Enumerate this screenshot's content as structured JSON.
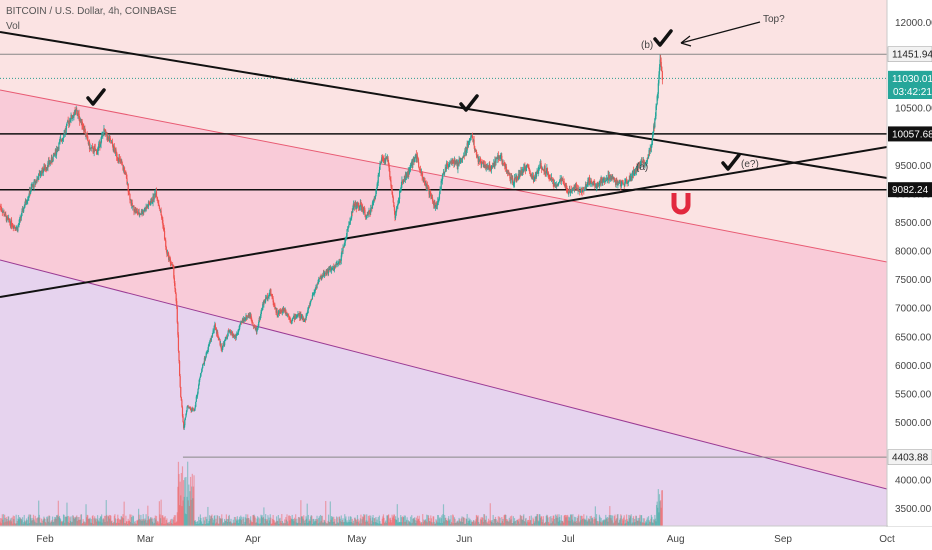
{
  "header": {
    "symbol": "BITCOIN / U.S. Dollar, 4h, COINBASE",
    "volume_label": "Vol"
  },
  "chart_data": {
    "type": "candlestick",
    "title": "BITCOIN / U.S. Dollar, 4h, COINBASE",
    "ylim": [
      3200,
      12400
    ],
    "y_ticks": [
      3500,
      4000,
      4500,
      5000,
      5500,
      6000,
      6500,
      7000,
      7500,
      8000,
      8500,
      9000,
      9500,
      10000,
      10500,
      11000,
      11500,
      12000
    ],
    "y_tick_labels": [
      "3500.00",
      "4000.00",
      "",
      "5000.00",
      "5500.00",
      "6000.00",
      "6500.00",
      "7000.00",
      "7500.00",
      "8000.00",
      "8500.00",
      "9000.00",
      "9500.00",
      "10000.00",
      "10500.00",
      "11000.00",
      "",
      "12000.00"
    ],
    "x_ticks": [
      {
        "label": "Feb",
        "day": 31
      },
      {
        "label": "Mar",
        "day": 60
      },
      {
        "label": "Apr",
        "day": 91
      },
      {
        "label": "May",
        "day": 121
      },
      {
        "label": "Jun",
        "day": 152
      },
      {
        "label": "Jul",
        "day": 182
      },
      {
        "label": "Aug",
        "day": 213
      },
      {
        "label": "Sep",
        "day": 244
      },
      {
        "label": "Oct",
        "day": 274
      }
    ],
    "x_range_days": [
      18,
      274
    ],
    "price_path": [
      [
        18,
        8800
      ],
      [
        20,
        8560
      ],
      [
        23,
        8400
      ],
      [
        25,
        8800
      ],
      [
        27,
        9100
      ],
      [
        30,
        9400
      ],
      [
        33,
        9600
      ],
      [
        36,
        10000
      ],
      [
        38,
        10300
      ],
      [
        40,
        10450
      ],
      [
        42,
        10200
      ],
      [
        44,
        9800
      ],
      [
        46,
        9750
      ],
      [
        48,
        10100
      ],
      [
        50,
        9900
      ],
      [
        52,
        9650
      ],
      [
        54,
        9400
      ],
      [
        56,
        8800
      ],
      [
        58,
        8650
      ],
      [
        60,
        8750
      ],
      [
        62,
        8900
      ],
      [
        63,
        9050
      ],
      [
        65,
        8500
      ],
      [
        66,
        8000
      ],
      [
        68,
        7700
      ],
      [
        69,
        7000
      ],
      [
        70,
        5600
      ],
      [
        71,
        4900
      ],
      [
        72,
        5300
      ],
      [
        74,
        5200
      ],
      [
        76,
        5900
      ],
      [
        78,
        6300
      ],
      [
        80,
        6700
      ],
      [
        82,
        6300
      ],
      [
        84,
        6600
      ],
      [
        86,
        6500
      ],
      [
        88,
        6800
      ],
      [
        90,
        6900
      ],
      [
        92,
        6600
      ],
      [
        94,
        7100
      ],
      [
        96,
        7300
      ],
      [
        98,
        6900
      ],
      [
        100,
        7000
      ],
      [
        102,
        6800
      ],
      [
        104,
        6900
      ],
      [
        106,
        6800
      ],
      [
        108,
        7200
      ],
      [
        110,
        7500
      ],
      [
        112,
        7650
      ],
      [
        114,
        7700
      ],
      [
        116,
        7800
      ],
      [
        118,
        8300
      ],
      [
        120,
        8800
      ],
      [
        122,
        8800
      ],
      [
        124,
        8600
      ],
      [
        126,
        8900
      ],
      [
        128,
        9600
      ],
      [
        130,
        9600
      ],
      [
        132,
        8600
      ],
      [
        134,
        9200
      ],
      [
        136,
        9400
      ],
      [
        138,
        9700
      ],
      [
        140,
        9300
      ],
      [
        142,
        9000
      ],
      [
        144,
        8750
      ],
      [
        146,
        9400
      ],
      [
        148,
        9600
      ],
      [
        150,
        9500
      ],
      [
        152,
        9700
      ],
      [
        154,
        10050
      ],
      [
        156,
        9600
      ],
      [
        158,
        9500
      ],
      [
        160,
        9450
      ],
      [
        162,
        9700
      ],
      [
        164,
        9450
      ],
      [
        166,
        9200
      ],
      [
        168,
        9350
      ],
      [
        170,
        9500
      ],
      [
        172,
        9250
      ],
      [
        174,
        9500
      ],
      [
        176,
        9400
      ],
      [
        178,
        9150
      ],
      [
        180,
        9250
      ],
      [
        182,
        9050
      ],
      [
        184,
        9150
      ],
      [
        186,
        9050
      ],
      [
        188,
        9250
      ],
      [
        190,
        9150
      ],
      [
        192,
        9250
      ],
      [
        194,
        9300
      ],
      [
        196,
        9200
      ],
      [
        198,
        9180
      ],
      [
        200,
        9300
      ],
      [
        202,
        9500
      ],
      [
        204,
        9550
      ],
      [
        205,
        9650
      ],
      [
        206,
        9900
      ],
      [
        207,
        10300
      ],
      [
        208,
        10900
      ],
      [
        208.6,
        11420
      ],
      [
        209.2,
        11030
      ]
    ],
    "horizontal_levels": [
      {
        "value": 11451.94,
        "label": "11451.94",
        "style": "solid"
      },
      {
        "value": 11030.01,
        "label": "11030.01",
        "style": "dotted"
      },
      {
        "value": 10057.68,
        "label": "10057.68",
        "style": "solid"
      },
      {
        "value": 9082.24,
        "label": "9082.24",
        "style": "solid"
      },
      {
        "value": 4403.88,
        "label": "4403.88",
        "style": "solid"
      }
    ],
    "countdown": "03:42:21",
    "annotations": [
      "Top?",
      "(b)",
      "(a)",
      "(e?)"
    ]
  }
}
